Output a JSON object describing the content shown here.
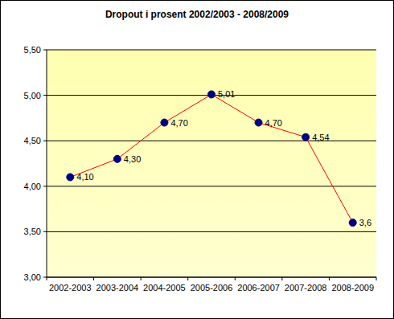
{
  "chart_data": {
    "type": "line",
    "title": "Dropout i prosent 2002/2003 - 2008/2009",
    "categories": [
      "2002-2003",
      "2003-2004",
      "2004-2005",
      "2005-2006",
      "2006-2007",
      "2007-2008",
      "2008-2009"
    ],
    "series": [
      {
        "color": "#ff0000",
        "marker": "circle",
        "values": [
          4.1,
          4.3,
          4.7,
          5.01,
          4.7,
          4.54,
          3.6
        ],
        "value_labels": [
          "4,10",
          "4,30",
          "4,70",
          "5,01",
          "4,70",
          "4,54",
          "3,6"
        ]
      }
    ],
    "ylim": [
      3.0,
      5.5
    ],
    "yticks": [
      {
        "value": 3.0,
        "label": "3,00"
      },
      {
        "value": 3.5,
        "label": "3,50"
      },
      {
        "value": 4.0,
        "label": "4,00"
      },
      {
        "value": 4.5,
        "label": "4,50"
      },
      {
        "value": 5.0,
        "label": "5,00"
      },
      {
        "value": 5.5,
        "label": "5,50"
      }
    ],
    "grid": true,
    "data_labels": true
  }
}
